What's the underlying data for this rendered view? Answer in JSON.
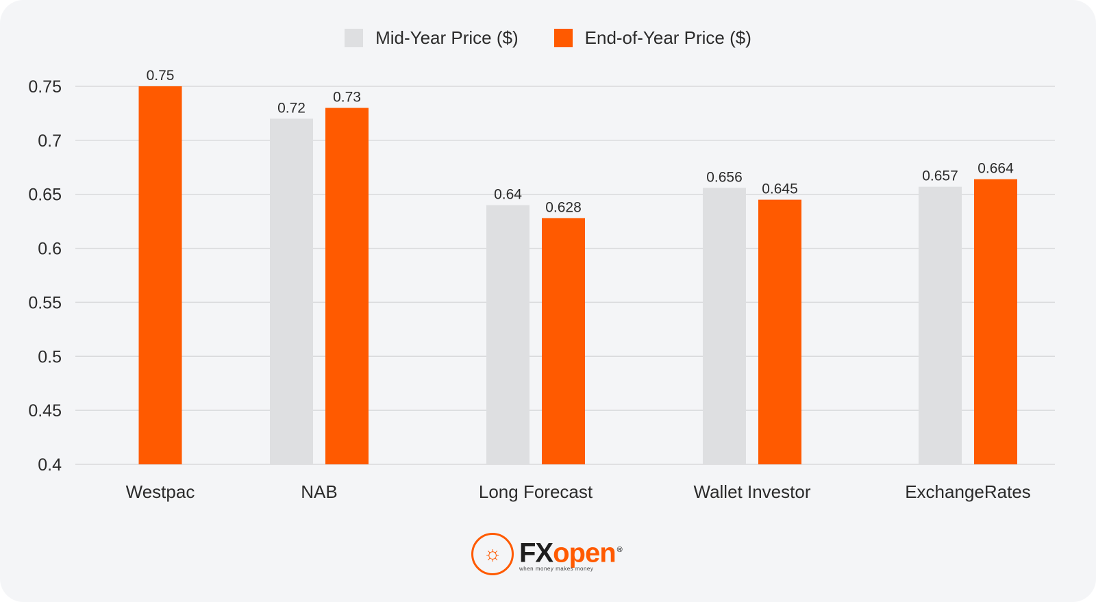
{
  "chart_data": {
    "type": "bar",
    "categories": [
      "Westpac",
      "NAB",
      "Long Forecast",
      "Wallet Investor",
      "ExchangeRates"
    ],
    "series": [
      {
        "name": "Mid-Year Price ($)",
        "color": "#dedfe1",
        "values": [
          null,
          0.72,
          0.64,
          0.656,
          0.657
        ]
      },
      {
        "name": "End-of-Year Price ($)",
        "color": "#ff5a00",
        "values": [
          0.75,
          0.73,
          0.628,
          0.645,
          0.664
        ]
      }
    ],
    "ylim": [
      0.4,
      0.75
    ],
    "yticks": [
      "0.4",
      "0.45",
      "0.5",
      "0.55",
      "0.6",
      "0.65",
      "0.7",
      "0.75"
    ],
    "grid": true,
    "legend": "top-center"
  },
  "logo": {
    "word_fx": "FX",
    "word_open": "open",
    "registered": "®",
    "tagline": "when money makes money"
  }
}
